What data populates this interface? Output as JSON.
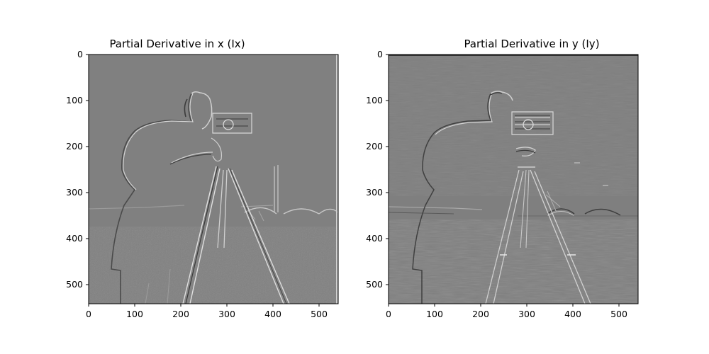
{
  "figure": {
    "panels": [
      {
        "title": "Partial Derivative in x (Ix)",
        "xticks": [
          "0",
          "100",
          "200",
          "300",
          "400",
          "500"
        ],
        "yticks": [
          "0",
          "100",
          "200",
          "300",
          "400",
          "500"
        ]
      },
      {
        "title": "Partial Derivative in y (Iy)",
        "xticks": [
          "0",
          "100",
          "200",
          "300",
          "400",
          "500"
        ],
        "yticks": [
          "0",
          "100",
          "200",
          "300",
          "400",
          "500"
        ]
      }
    ],
    "colors": {
      "background_gray": "#808080",
      "edge_light": "#d8d8d8",
      "edge_dark": "#3a3a3a"
    },
    "image_extent": {
      "x": [
        0,
        540
      ],
      "y": [
        540,
        0
      ]
    },
    "subject": "grayscale gradient images of a photographer with a camera on a tripod"
  }
}
